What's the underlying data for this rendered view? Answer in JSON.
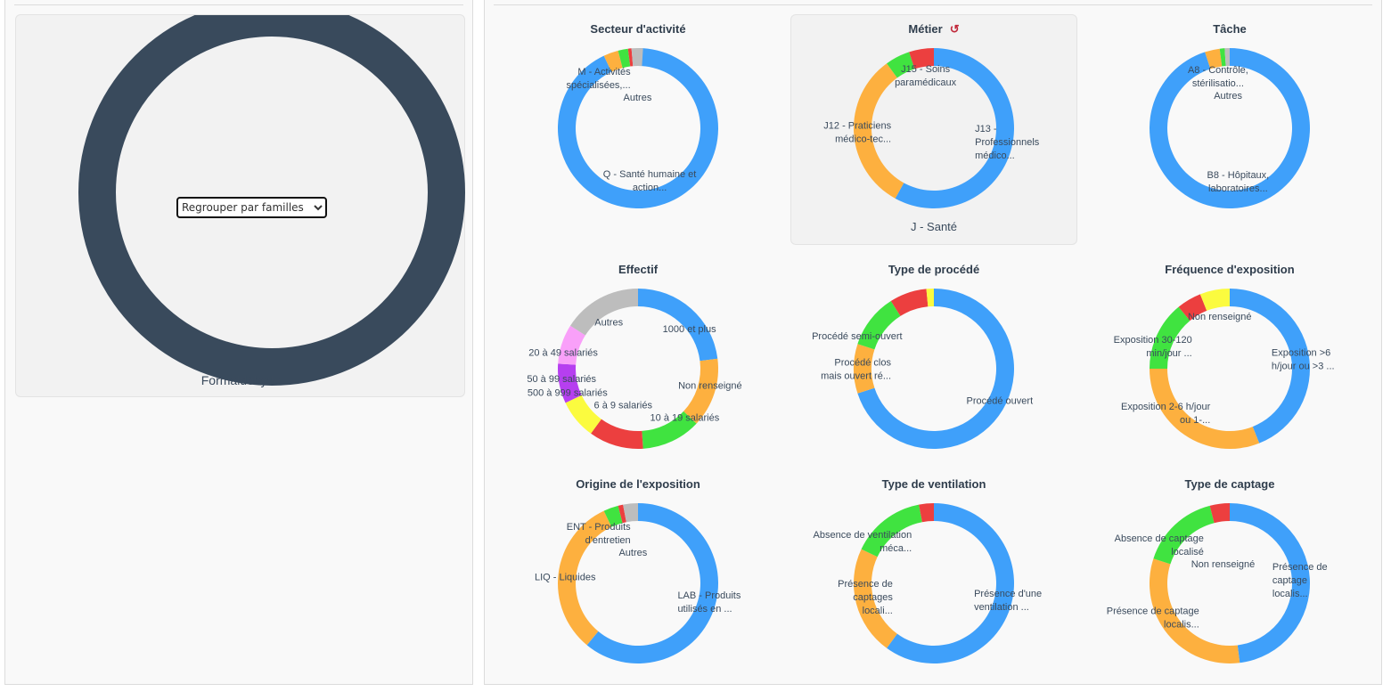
{
  "left": {
    "select_value": "Regrouper par familles",
    "ring_color": "#394a5c",
    "label": "Formaldéhyde"
  },
  "colors": {
    "blue": "#3fa0fa",
    "orange": "#fdb03f",
    "green": "#40e340",
    "red": "#ec3f3f",
    "gray": "#bdbdbd",
    "yellow": "#fbfb3f",
    "purple": "#b63ff0",
    "pink": "#f9a0f9"
  },
  "chart_data": [
    {
      "type": "pie",
      "title": "Secteur d'activité",
      "slices": [
        {
          "label": [
            "Q - Santé humaine et",
            "action..."
          ],
          "value": 0.93,
          "color": "blue"
        },
        {
          "label": [
            "M - Activités",
            "spécialisées,..."
          ],
          "value": 0.03,
          "color": "orange"
        },
        {
          "label": [],
          "value": 0.02,
          "color": "green"
        },
        {
          "label": [],
          "value": 0.007,
          "color": "red"
        },
        {
          "label": [
            "Autres"
          ],
          "value": 0.023,
          "color": "gray"
        }
      ]
    },
    {
      "type": "pie",
      "title": "Métier",
      "selected": true,
      "subtitle": "J - Santé",
      "slices": [
        {
          "label": [
            "J13 -",
            "Professionnels",
            "médico..."
          ],
          "value": 0.58,
          "color": "blue"
        },
        {
          "label": [
            "J12 - Praticiens",
            "médico-tec..."
          ],
          "value": 0.32,
          "color": "orange"
        },
        {
          "label": [],
          "value": 0.05,
          "color": "green"
        },
        {
          "label": [
            "J15 - Soins",
            "paramédicaux"
          ],
          "value": 0.05,
          "color": "red"
        }
      ]
    },
    {
      "type": "pie",
      "title": "Tâche",
      "slices": [
        {
          "label": [
            "B8 - Hôpitaux,",
            "laboratoires..."
          ],
          "value": 0.95,
          "color": "blue"
        },
        {
          "label": [
            "A8 - Contrôle,",
            "stérilisatio..."
          ],
          "value": 0.03,
          "color": "orange"
        },
        {
          "label": [],
          "value": 0.01,
          "color": "green"
        },
        {
          "label": [
            "Autres"
          ],
          "value": 0.01,
          "color": "gray"
        }
      ]
    },
    {
      "type": "pie",
      "title": "Effectif",
      "slices": [
        {
          "label": [
            "1000 et plus"
          ],
          "value": 0.23,
          "color": "blue"
        },
        {
          "label": [
            "Non renseigné"
          ],
          "value": 0.14,
          "color": "orange"
        },
        {
          "label": [
            "10 à 19 salariés"
          ],
          "value": 0.12,
          "color": "green"
        },
        {
          "label": [
            "6 à 9 salariés"
          ],
          "value": 0.11,
          "color": "red"
        },
        {
          "label": [
            "500 à 999 salariés"
          ],
          "value": 0.08,
          "color": "yellow"
        },
        {
          "label": [
            "50 à 99 salariés"
          ],
          "value": 0.08,
          "color": "purple"
        },
        {
          "label": [
            "20 à 49 salariés"
          ],
          "value": 0.08,
          "color": "pink"
        },
        {
          "label": [
            "Autres"
          ],
          "value": 0.16,
          "color": "gray"
        }
      ]
    },
    {
      "type": "pie",
      "title": "Type de procédé",
      "slices": [
        {
          "label": [
            "Procédé ouvert"
          ],
          "value": 0.7,
          "color": "blue"
        },
        {
          "label": [
            "Procédé clos",
            "mais ouvert ré..."
          ],
          "value": 0.1,
          "color": "orange"
        },
        {
          "label": [
            "Procédé semi-ouvert"
          ],
          "value": 0.11,
          "color": "green"
        },
        {
          "label": [],
          "value": 0.075,
          "color": "red"
        },
        {
          "label": [],
          "value": 0.015,
          "color": "yellow"
        }
      ]
    },
    {
      "type": "pie",
      "title": "Fréquence d'exposition",
      "slices": [
        {
          "label": [
            "Exposition >6",
            "h/jour ou >3 ..."
          ],
          "value": 0.44,
          "color": "blue"
        },
        {
          "label": [
            "Exposition 2-6 h/jour",
            "ou 1-..."
          ],
          "value": 0.31,
          "color": "orange"
        },
        {
          "label": [
            "Exposition 30-120",
            "min/jour ..."
          ],
          "value": 0.14,
          "color": "green"
        },
        {
          "label": [],
          "value": 0.05,
          "color": "red"
        },
        {
          "label": [
            "Non renseigné"
          ],
          "value": 0.06,
          "color": "yellow"
        }
      ]
    },
    {
      "type": "pie",
      "title": "Origine de l'exposition",
      "slices": [
        {
          "label": [
            "LAB - Produits",
            "utilisés en ..."
          ],
          "value": 0.61,
          "color": "blue"
        },
        {
          "label": [
            "LIQ - Liquides"
          ],
          "value": 0.32,
          "color": "orange"
        },
        {
          "label": [
            "ENT - Produits",
            "d'entretien"
          ],
          "value": 0.03,
          "color": "green"
        },
        {
          "label": [],
          "value": 0.01,
          "color": "red"
        },
        {
          "label": [
            "Autres"
          ],
          "value": 0.03,
          "color": "gray"
        }
      ]
    },
    {
      "type": "pie",
      "title": "Type de ventilation",
      "slices": [
        {
          "label": [
            "Présence d'une",
            "ventilation ..."
          ],
          "value": 0.6,
          "color": "blue"
        },
        {
          "label": [
            "Présence de",
            "captages",
            "locali..."
          ],
          "value": 0.22,
          "color": "orange"
        },
        {
          "label": [
            "Absence de ventilation",
            "méca..."
          ],
          "value": 0.15,
          "color": "green"
        },
        {
          "label": [],
          "value": 0.03,
          "color": "red"
        }
      ]
    },
    {
      "type": "pie",
      "title": "Type de captage",
      "slices": [
        {
          "label": [
            "Présence de",
            "captage",
            "localis..."
          ],
          "value": 0.48,
          "color": "blue"
        },
        {
          "label": [
            "Présence de captage",
            "localis..."
          ],
          "value": 0.32,
          "color": "orange"
        },
        {
          "label": [
            "Absence de captage",
            "localisé"
          ],
          "value": 0.16,
          "color": "green"
        },
        {
          "label": [
            "Non renseigné"
          ],
          "value": 0.04,
          "color": "red"
        }
      ]
    }
  ]
}
